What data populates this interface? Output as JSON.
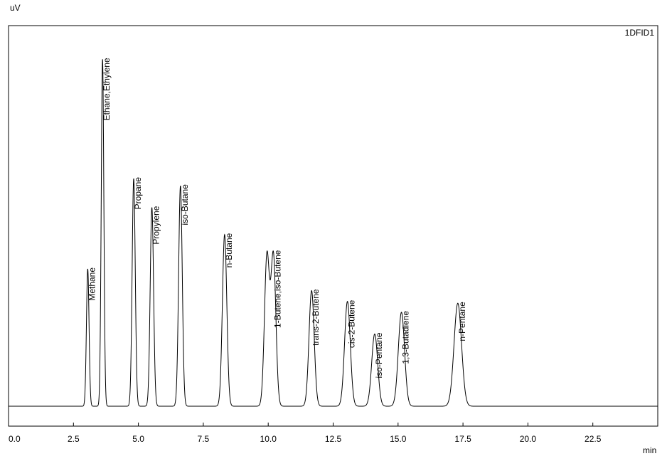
{
  "chart_data": {
    "type": "line",
    "y_unit": "uV",
    "x_unit": "min",
    "detector_label": "1DFID1",
    "x_range": [
      0,
      25
    ],
    "x_ticks": [
      0.0,
      2.5,
      5.0,
      7.5,
      10.0,
      12.5,
      15.0,
      17.5,
      20.0,
      22.5
    ],
    "x_tick_labels": [
      "0.0",
      "2.5",
      "5.0",
      "7.5",
      "10.0",
      "12.5",
      "15.0",
      "17.5",
      "20.0",
      "22.5"
    ],
    "y_range": [
      0,
      100
    ],
    "grid": false,
    "peaks": [
      {
        "label": "Methane",
        "rt": 3.05,
        "height": 38,
        "width": 0.05
      },
      {
        "label": "Ethane,Ethylene",
        "rt": 3.62,
        "height": 96,
        "width": 0.05
      },
      {
        "label": "Propane",
        "rt": 4.82,
        "height": 63,
        "width": 0.06
      },
      {
        "label": "Propylene",
        "rt": 5.52,
        "height": 55,
        "width": 0.065
      },
      {
        "label": "iso-Butane",
        "rt": 6.62,
        "height": 61,
        "width": 0.07
      },
      {
        "label": "n-Butane",
        "rt": 8.32,
        "height": 47.5,
        "width": 0.085
      },
      {
        "label": "",
        "rt": 9.95,
        "height": 41.5,
        "width": 0.095
      },
      {
        "label": "1-Butene,iso-Butene",
        "rt": 10.2,
        "height": 41.5,
        "width": 0.095
      },
      {
        "label": "trans-2-Butene",
        "rt": 11.67,
        "height": 32,
        "width": 0.1
      },
      {
        "label": "cis-2-Butene",
        "rt": 13.05,
        "height": 29,
        "width": 0.11
      },
      {
        "label": "iso-Pentane",
        "rt": 14.1,
        "height": 20,
        "width": 0.115
      },
      {
        "label": "1,3-Butadiene",
        "rt": 15.13,
        "height": 26,
        "width": 0.12
      },
      {
        "label": "n-Pentane",
        "rt": 17.3,
        "height": 28.5,
        "width": 0.145
      }
    ]
  }
}
